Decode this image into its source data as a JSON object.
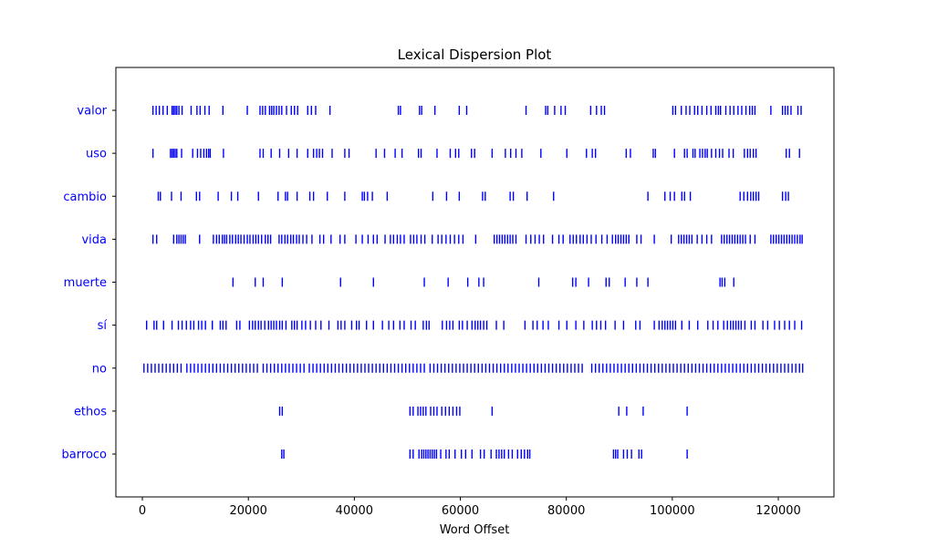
{
  "chart_data": {
    "type": "scatter",
    "title": "Lexical Dispersion Plot",
    "xlabel": "Word Offset",
    "ylabel": "",
    "xlim": [
      -5000,
      130500
    ],
    "xticks": [
      0,
      20000,
      40000,
      60000,
      80000,
      100000,
      120000
    ],
    "xtick_labels": [
      "0",
      "20000",
      "40000",
      "60000",
      "80000",
      "100000",
      "120000"
    ],
    "marker": "|",
    "color": "#0000ff",
    "legend": "none",
    "grid": false,
    "categories": [
      "valor",
      "uso",
      "cambio",
      "vida",
      "muerte",
      "sí",
      "no",
      "ethos",
      "barroco"
    ],
    "series": [
      {
        "name": "valor",
        "x": [
          2000,
          2600,
          3200,
          3900,
          4700,
          5600,
          5900,
          6200,
          6500,
          6900,
          7500,
          9200,
          10300,
          10900,
          11800,
          12600,
          15200,
          19800,
          22200,
          22700,
          23200,
          24000,
          24400,
          24800,
          25300,
          25800,
          26300,
          27200,
          28100,
          28700,
          29300,
          31200,
          31900,
          32700,
          35400,
          48300,
          48700,
          52300,
          52700,
          55200,
          59800,
          61200,
          72400,
          76100,
          76500,
          77800,
          79000,
          79800,
          84600,
          85700,
          86600,
          87200,
          100100,
          100600,
          101700,
          102600,
          103300,
          104200,
          104800,
          105600,
          106500,
          107300,
          108200,
          108700,
          109100,
          110100,
          110900,
          111600,
          112400,
          113100,
          113900,
          114600,
          115100,
          115600,
          118600,
          120800,
          121300,
          121800,
          122400,
          123700,
          124300
        ]
      },
      {
        "name": "uso",
        "x": [
          2000,
          5300,
          5600,
          5900,
          6200,
          6500,
          7400,
          9500,
          10400,
          11000,
          11600,
          12100,
          12500,
          12800,
          15300,
          22200,
          22800,
          24300,
          25900,
          27600,
          29200,
          31200,
          32300,
          32900,
          33400,
          34000,
          35800,
          38200,
          39000,
          44100,
          45700,
          47700,
          49000,
          52100,
          52600,
          55600,
          58100,
          59100,
          59700,
          62100,
          62700,
          66000,
          68500,
          69500,
          70500,
          71600,
          75200,
          80100,
          83800,
          84900,
          85500,
          91300,
          92100,
          96400,
          96800,
          100400,
          102300,
          102800,
          103900,
          104300,
          105200,
          105700,
          106200,
          106600,
          107400,
          108200,
          108900,
          109500,
          110700,
          111500,
          113600,
          114200,
          114700,
          115300,
          115800,
          121500,
          122100,
          124000
        ]
      },
      {
        "name": "cambio",
        "x": [
          3000,
          3400,
          5500,
          7300,
          10200,
          10800,
          14300,
          16800,
          18000,
          21900,
          25600,
          27000,
          27400,
          29200,
          31600,
          32300,
          34900,
          38200,
          41500,
          41900,
          42500,
          43400,
          46200,
          54800,
          57400,
          59800,
          64200,
          64700,
          69400,
          70000,
          72600,
          77600,
          95400,
          98600,
          99600,
          100400,
          101800,
          102300,
          103400,
          112800,
          113500,
          114200,
          114800,
          115300,
          115800,
          116300,
          120800,
          121400,
          121900
        ]
      },
      {
        "name": "vida",
        "x": [
          2000,
          2700,
          5900,
          6500,
          6900,
          7300,
          7700,
          8100,
          10800,
          13400,
          14000,
          14500,
          15100,
          15500,
          15900,
          16500,
          17000,
          17600,
          18100,
          18600,
          19200,
          19800,
          20300,
          20900,
          21400,
          21900,
          22500,
          23200,
          23700,
          24200,
          25800,
          26300,
          26900,
          27400,
          28000,
          28500,
          29100,
          29600,
          30300,
          31000,
          32000,
          33500,
          34200,
          35600,
          37300,
          38200,
          40300,
          41500,
          42600,
          43600,
          44300,
          45800,
          46800,
          47400,
          48100,
          48700,
          49400,
          50600,
          51200,
          51800,
          52600,
          53300,
          54700,
          55800,
          56500,
          57300,
          58100,
          58900,
          59700,
          60500,
          62900,
          66400,
          66900,
          67400,
          67900,
          68400,
          68900,
          69400,
          69900,
          70500,
          72400,
          73300,
          74100,
          74900,
          75700,
          77400,
          78600,
          79400,
          80700,
          81300,
          81900,
          82600,
          83200,
          83900,
          84700,
          85600,
          86700,
          87700,
          88700,
          89300,
          89800,
          90300,
          90800,
          91300,
          91800,
          93300,
          94100,
          96600,
          99800,
          101200,
          101700,
          102200,
          102700,
          103200,
          103700,
          104700,
          105600,
          106500,
          107400,
          109300,
          109800,
          110300,
          110800,
          111300,
          111800,
          112300,
          112800,
          113300,
          113800,
          114700,
          115600,
          118600,
          119100,
          119600,
          120100,
          120600,
          121100,
          121600,
          122100,
          122600,
          123100,
          123600,
          124100,
          124500
        ]
      },
      {
        "name": "muerte",
        "x": [
          17100,
          21300,
          22800,
          26400,
          37400,
          43600,
          53200,
          57700,
          61400,
          63500,
          64400,
          74800,
          81200,
          81800,
          84200,
          87500,
          88100,
          91100,
          93300,
          95400,
          109000,
          109400,
          109900,
          111600
        ]
      },
      {
        "name": "sí",
        "x": [
          800,
          2200,
          2700,
          4000,
          5600,
          6800,
          7500,
          8300,
          9100,
          9700,
          10600,
          11200,
          11900,
          13200,
          14700,
          15200,
          15800,
          17800,
          18400,
          20200,
          20800,
          21300,
          21900,
          22400,
          23100,
          23800,
          24300,
          24800,
          25300,
          25900,
          26400,
          27100,
          28200,
          28700,
          29200,
          30100,
          30800,
          31700,
          32700,
          33700,
          35200,
          36900,
          37500,
          38200,
          39500,
          40400,
          40900,
          42300,
          43600,
          45300,
          46500,
          47400,
          48600,
          49400,
          50700,
          51500,
          53000,
          53600,
          54100,
          56600,
          57400,
          58000,
          58600,
          59800,
          60400,
          61300,
          62200,
          62800,
          63300,
          63800,
          64400,
          65000,
          66800,
          68200,
          72200,
          73700,
          74500,
          75600,
          76600,
          78600,
          80100,
          81800,
          83300,
          84900,
          85700,
          86500,
          87400,
          89200,
          90800,
          93100,
          93900,
          96600,
          97500,
          98100,
          98600,
          99100,
          99600,
          100100,
          100600,
          101800,
          103200,
          104800,
          106700,
          107700,
          108600,
          109700,
          110400,
          111000,
          111500,
          112000,
          112500,
          113000,
          113700,
          114900,
          115600,
          117100,
          118000,
          119300,
          120200,
          121200,
          122100,
          123100,
          124400
        ]
      },
      {
        "name": "no",
        "x": [
          300,
          1000,
          1700,
          2400,
          3100,
          3800,
          4500,
          5200,
          5900,
          6600,
          7300,
          8400,
          9100,
          9800,
          10500,
          11200,
          11900,
          12600,
          13300,
          14000,
          14700,
          15400,
          16100,
          16800,
          17500,
          18200,
          18900,
          19600,
          20300,
          21000,
          21700,
          22800,
          23500,
          24200,
          24900,
          25600,
          26300,
          27000,
          27700,
          28400,
          29100,
          29800,
          30500,
          31500,
          32200,
          32900,
          33600,
          34300,
          35000,
          35700,
          36400,
          37100,
          37800,
          38500,
          39200,
          39900,
          40600,
          41300,
          42000,
          42700,
          43400,
          44100,
          44800,
          45500,
          46200,
          46900,
          47600,
          48300,
          49000,
          49700,
          50400,
          51100,
          51800,
          52500,
          53200,
          54300,
          55000,
          55700,
          56400,
          57100,
          57800,
          58500,
          59200,
          59900,
          60600,
          61300,
          62000,
          62700,
          63400,
          64100,
          64800,
          65500,
          66200,
          66900,
          67600,
          68300,
          69000,
          69700,
          70400,
          71100,
          71800,
          72500,
          73200,
          73900,
          74600,
          75300,
          76000,
          76700,
          77400,
          78100,
          78800,
          79500,
          80200,
          80900,
          81600,
          82300,
          83000,
          84800,
          85500,
          86200,
          86900,
          87600,
          88300,
          89000,
          89700,
          90400,
          91100,
          91800,
          92500,
          93200,
          93900,
          94600,
          95300,
          96000,
          96700,
          97400,
          98100,
          98800,
          99500,
          100200,
          100900,
          101600,
          102300,
          103000,
          103700,
          104400,
          105100,
          105800,
          106500,
          107200,
          107900,
          108600,
          109300,
          110000,
          110700,
          111400,
          112100,
          112800,
          113500,
          114200,
          114900,
          115600,
          116300,
          117000,
          117700,
          118400,
          119100,
          119800,
          120500,
          121200,
          121900,
          122600,
          123300,
          124000,
          124600
        ]
      },
      {
        "name": "ethos",
        "x": [
          25900,
          26400,
          50500,
          51100,
          52000,
          52500,
          53000,
          53500,
          54400,
          55000,
          55600,
          56500,
          57200,
          57900,
          58600,
          59300,
          59900,
          66000,
          89900,
          91400,
          94500,
          102800
        ]
      },
      {
        "name": "barroco",
        "x": [
          26300,
          26700,
          50500,
          51100,
          52200,
          52700,
          53100,
          53500,
          53900,
          54300,
          54700,
          55100,
          55500,
          56300,
          57300,
          57900,
          59000,
          60200,
          61000,
          62200,
          63800,
          64500,
          65800,
          66800,
          67300,
          67800,
          68300,
          69100,
          69800,
          70800,
          71500,
          72100,
          72700,
          73100,
          88900,
          89300,
          89700,
          90800,
          91500,
          92300,
          93700,
          94200,
          102800
        ]
      }
    ]
  }
}
